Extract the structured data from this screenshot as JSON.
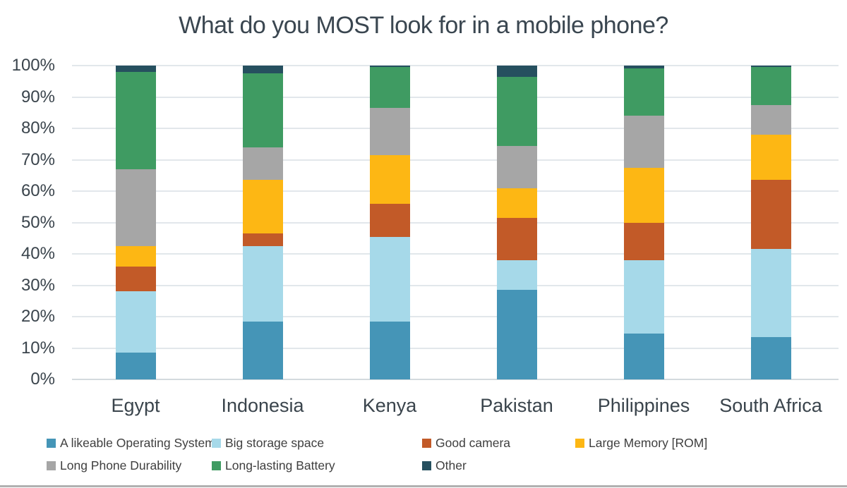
{
  "title": "What do you MOST look for in a mobile phone?",
  "chart_data": {
    "type": "bar",
    "stacked": true,
    "title": "What do you MOST look for in a mobile phone?",
    "xlabel": "",
    "ylabel": "",
    "ylim": [
      0,
      100
    ],
    "y_tick_labels": [
      "0%",
      "10%",
      "20%",
      "30%",
      "40%",
      "50%",
      "60%",
      "70%",
      "80%",
      "90%",
      "100%"
    ],
    "grid": true,
    "legend_position": "bottom",
    "categories": [
      "Egypt",
      "Indonesia",
      "Kenya",
      "Pakistan",
      "Philippines",
      "South Africa"
    ],
    "series": [
      {
        "name": "A likeable Operating System",
        "color": "#4595b7",
        "values": [
          8.5,
          18.5,
          18.5,
          28.5,
          14.5,
          13.5
        ]
      },
      {
        "name": "Big storage space",
        "color": "#a6d9e9",
        "values": [
          19.5,
          24,
          27,
          9.5,
          23.5,
          28
        ]
      },
      {
        "name": "Good camera",
        "color": "#c25a28",
        "values": [
          8,
          4,
          10.5,
          13.5,
          12,
          22
        ]
      },
      {
        "name": "Large Memory [ROM]",
        "color": "#fdb714",
        "values": [
          6.5,
          17,
          15.5,
          9.5,
          17.5,
          14.5
        ]
      },
      {
        "name": "Long Phone Durability",
        "color": "#a6a6a6",
        "values": [
          24.5,
          10.5,
          15,
          13.5,
          16.5,
          9.5
        ]
      },
      {
        "name": "Long-lasting Battery",
        "color": "#3f9b62",
        "values": [
          31,
          23.5,
          13,
          22,
          15,
          12
        ]
      },
      {
        "name": "Other",
        "color": "#26505f",
        "values": [
          2,
          2.5,
          0.5,
          3.5,
          1,
          0.5
        ]
      }
    ]
  }
}
